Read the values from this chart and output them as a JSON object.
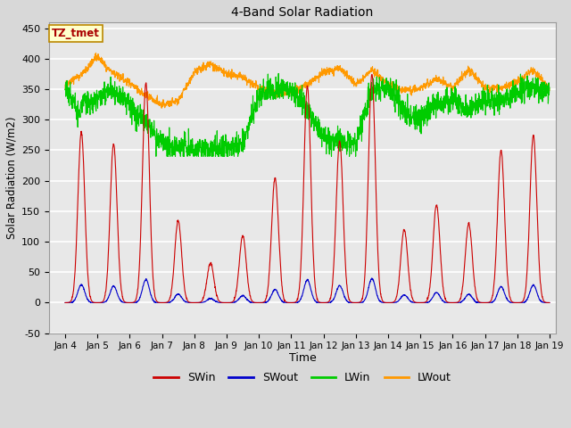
{
  "title": "4-Band Solar Radiation",
  "xlabel": "Time",
  "ylabel": "Solar Radiation (W/m2)",
  "ylim": [
    -50,
    460
  ],
  "xlim_days": [
    3.5,
    19.2
  ],
  "xtick_labels": [
    "Jan 4",
    "Jan 5",
    "Jan 6",
    "Jan 7",
    "Jan 8",
    "Jan 9",
    "Jan 10",
    "Jan 11",
    "Jan 12",
    "Jan 13",
    "Jan 14",
    "Jan 15",
    "Jan 16",
    "Jan 17",
    "Jan 18",
    "Jan 19"
  ],
  "xtick_positions": [
    4,
    5,
    6,
    7,
    8,
    9,
    10,
    11,
    12,
    13,
    14,
    15,
    16,
    17,
    18,
    19
  ],
  "ytick_positions": [
    -50,
    0,
    50,
    100,
    150,
    200,
    250,
    300,
    350,
    400,
    450
  ],
  "legend_labels": [
    "SWin",
    "SWout",
    "LWin",
    "LWout"
  ],
  "legend_colors": [
    "#cc0000",
    "#0000cc",
    "#00cc00",
    "#ff9900"
  ],
  "annotation_text": "TZ_tmet",
  "annotation_color": "#aa0000",
  "annotation_bg": "#ffffcc",
  "bg_color": "#e8e8e8",
  "grid_color": "#ffffff",
  "SWin_color": "#cc0000",
  "SWout_color": "#0000cc",
  "LWin_color": "#00cc00",
  "LWout_color": "#ff9900",
  "linewidth": 0.8,
  "figwidth": 6.4,
  "figheight": 4.8,
  "dpi": 100
}
